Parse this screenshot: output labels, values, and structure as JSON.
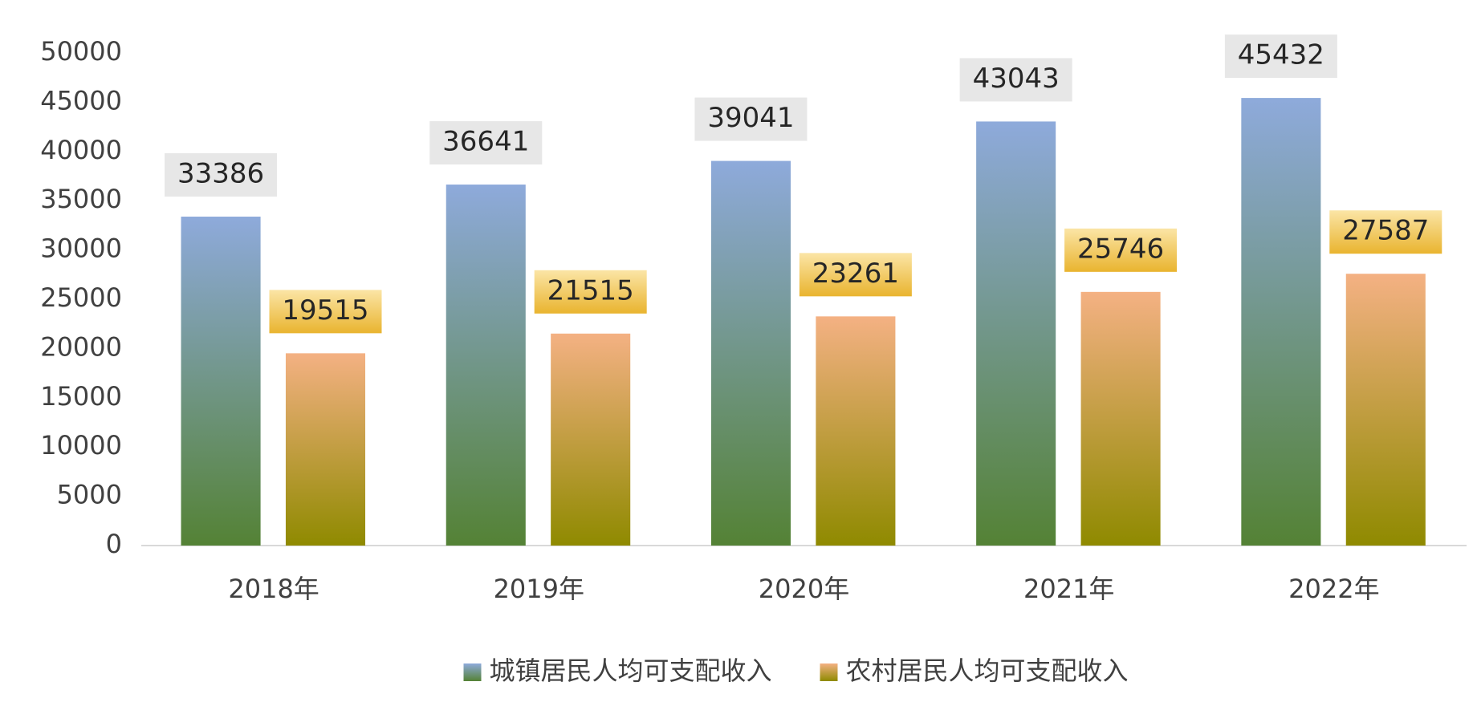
{
  "chart_data": {
    "type": "bar",
    "categories": [
      "2018年",
      "2019年",
      "2020年",
      "2021年",
      "2022年"
    ],
    "series": [
      {
        "name": "城镇居民人均可支配收入",
        "color": "#8eaadb",
        "values": [
          33386,
          36641,
          39041,
          43043,
          45432
        ]
      },
      {
        "name": "农村居民人均可支配收入",
        "color": "#f4b183",
        "values": [
          19515,
          21515,
          23261,
          25746,
          27587
        ]
      }
    ],
    "ylim": [
      0,
      50000
    ],
    "yticks": [
      0,
      5000,
      10000,
      15000,
      20000,
      25000,
      30000,
      35000,
      40000,
      45000,
      50000
    ],
    "grid": false,
    "legend": "bottom"
  }
}
